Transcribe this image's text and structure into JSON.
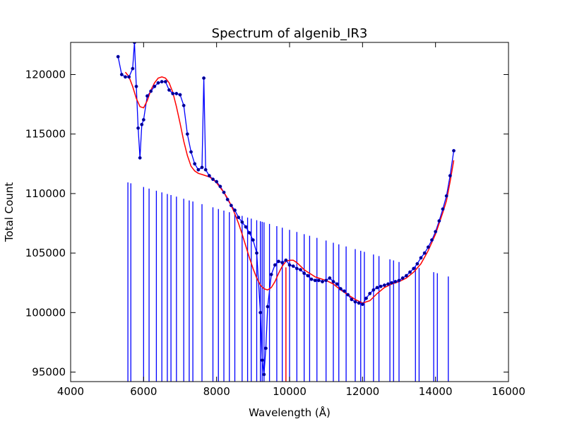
{
  "chart_data": {
    "type": "line",
    "title": "Spectrum of algenib_IR3",
    "xlabel": "Wavelength (Å)",
    "ylabel": "Total Count",
    "xlim": [
      4000,
      16000
    ],
    "ylim": [
      94200,
      122700
    ],
    "xticks": [
      4000,
      6000,
      8000,
      10000,
      12000,
      14000,
      16000
    ],
    "yticks": [
      95000,
      100000,
      105000,
      110000,
      115000,
      120000
    ],
    "grid": false,
    "legend": null,
    "colors": {
      "data": "#0000ff",
      "marker": "#000080",
      "fit": "#ff0000"
    },
    "series": [
      {
        "role": "data",
        "x": [
          5300,
          5400,
          5500,
          5600,
          5700,
          5750,
          5800,
          5850,
          5900,
          5950,
          6000,
          6100,
          6200,
          6300,
          6400,
          6500,
          6600,
          6700,
          6800,
          6900,
          7000,
          7100,
          7200,
          7300,
          7400,
          7500,
          7600,
          7650,
          7700,
          7800,
          7900,
          8000,
          8100,
          8200,
          8300,
          8400,
          8500,
          8600,
          8700,
          8800,
          8900,
          9000,
          9100,
          9200,
          9250,
          9300,
          9350,
          9400,
          9500,
          9600,
          9700,
          9800,
          9900,
          10000,
          10100,
          10200,
          10300,
          10400,
          10500,
          10600,
          10700,
          10800,
          10900,
          11000,
          11100,
          11200,
          11300,
          11400,
          11500,
          11600,
          11700,
          11800,
          11900,
          12000,
          12100,
          12200,
          12300,
          12400,
          12500,
          12600,
          12700,
          12800,
          12900,
          13000,
          13100,
          13200,
          13300,
          13400,
          13500,
          13600,
          13700,
          13800,
          13900,
          14000,
          14100,
          14200,
          14300,
          14400,
          14500
        ],
        "y": [
          121500,
          120000,
          119800,
          119800,
          120500,
          122700,
          119000,
          115500,
          113000,
          115800,
          116200,
          118200,
          118600,
          119000,
          119300,
          119400,
          119400,
          118700,
          118400,
          118400,
          118300,
          117400,
          115000,
          113500,
          112500,
          112000,
          112200,
          119700,
          112000,
          111500,
          111200,
          111000,
          110600,
          110100,
          109500,
          109000,
          108600,
          108000,
          107600,
          107200,
          106700,
          106100,
          105000,
          100000,
          96000,
          94800,
          97000,
          100500,
          103200,
          104000,
          104300,
          104200,
          104400,
          104000,
          103900,
          103700,
          103600,
          103300,
          103100,
          102800,
          102700,
          102700,
          102600,
          102700,
          102900,
          102600,
          102400,
          102000,
          101800,
          101500,
          101100,
          100900,
          100800,
          100700,
          101200,
          101600,
          101900,
          102100,
          102200,
          102300,
          102400,
          102500,
          102600,
          102700,
          102900,
          103100,
          103400,
          103700,
          104100,
          104600,
          105000,
          105500,
          106100,
          106800,
          107700,
          108700,
          109800,
          111500,
          113600
        ]
      },
      {
        "role": "dropouts",
        "x": [
          5570,
          5650,
          6000,
          6150,
          6350,
          6500,
          6650,
          6750,
          6900,
          7100,
          7250,
          7350,
          7600,
          7900,
          8050,
          8200,
          8350,
          8500,
          8700,
          8850,
          8950,
          9100,
          9200,
          9250,
          9300,
          9450,
          9650,
          9800,
          10000,
          10200,
          10400,
          10550,
          10750,
          11000,
          11200,
          11350,
          11550,
          11800,
          11950,
          12050,
          12300,
          12450,
          12750,
          12850,
          13000,
          13450,
          13550,
          13950,
          14050,
          14350
        ]
      },
      {
        "role": "fit",
        "x": [
          5500,
          5600,
          5700,
          5800,
          5900,
          6000,
          6100,
          6200,
          6300,
          6400,
          6500,
          6600,
          6700,
          6800,
          6900,
          7000,
          7100,
          7200,
          7300,
          7400,
          7500,
          7600,
          7700,
          7800,
          7900,
          8000,
          8100,
          8200,
          8300,
          8400,
          8500,
          8600,
          8700,
          8800,
          8900,
          9000,
          9100,
          9200,
          9300,
          9400,
          9500,
          9600,
          9700,
          9800,
          9900,
          10000,
          10100,
          10200,
          10300,
          10400,
          10500,
          10600,
          10700,
          10800,
          10900,
          11000,
          11200,
          11400,
          11600,
          11800,
          12000,
          12200,
          12400,
          12600,
          12800,
          13000,
          13200,
          13400,
          13600,
          13800,
          14000,
          14200,
          14300,
          14400,
          14500
        ],
        "y": [
          120200,
          119800,
          119000,
          118000,
          117300,
          117200,
          117800,
          118700,
          119300,
          119700,
          119800,
          119700,
          119300,
          118500,
          117300,
          115900,
          114400,
          113200,
          112300,
          111900,
          111700,
          111600,
          111500,
          111400,
          111200,
          110900,
          110500,
          110100,
          109600,
          109000,
          108300,
          107500,
          106600,
          105600,
          104600,
          103700,
          102900,
          102300,
          102000,
          101900,
          102100,
          102600,
          103300,
          103900,
          104300,
          104400,
          104400,
          104200,
          103900,
          103600,
          103400,
          103200,
          103000,
          102900,
          102800,
          102700,
          102400,
          101900,
          101500,
          101100,
          100800,
          101000,
          101600,
          102100,
          102400,
          102600,
          102900,
          103400,
          104100,
          105200,
          106600,
          108400,
          109400,
          111000,
          112800
        ]
      }
    ],
    "fit_drop_x": 9900
  }
}
